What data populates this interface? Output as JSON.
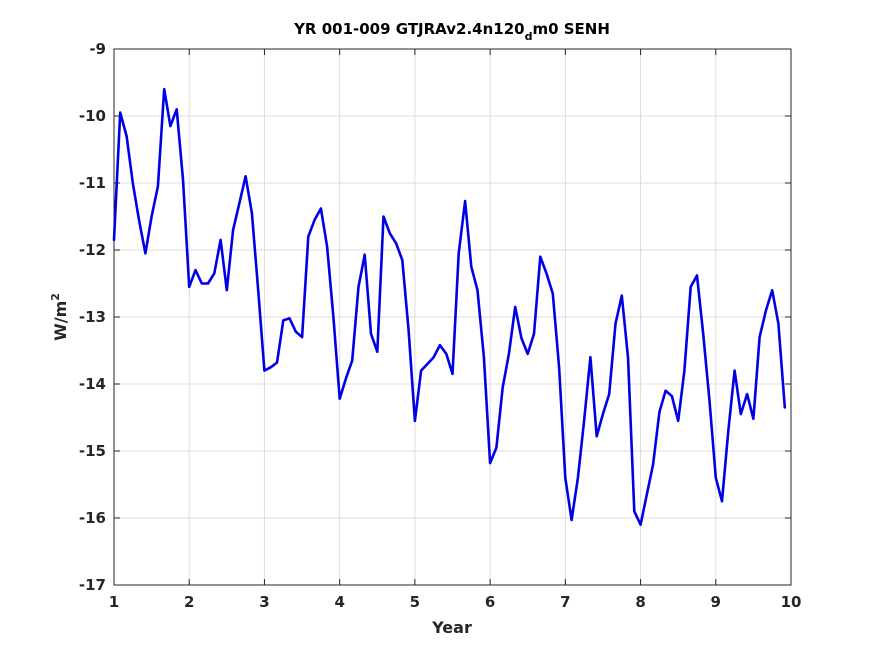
{
  "chart_data": {
    "type": "line",
    "title_main": "YR 001-009 GTJRAv2.4n120",
    "title_sub": "d",
    "title_tail": "m0 SENH",
    "xlabel": "Year",
    "ylabel_base": "W/m",
    "ylabel_sup": "2",
    "xlim": [
      1,
      10
    ],
    "ylim": [
      -17,
      -9
    ],
    "xticks": [
      1,
      2,
      3,
      4,
      5,
      6,
      7,
      8,
      9,
      10
    ],
    "yticks": [
      -17,
      -16,
      -15,
      -14,
      -13,
      -12,
      -11,
      -10,
      -9
    ],
    "xtick_labels": [
      "1",
      "2",
      "3",
      "4",
      "5",
      "6",
      "7",
      "8",
      "9",
      "10"
    ],
    "ytick_labels": [
      "-17",
      "-16",
      "-15",
      "-14",
      "-13",
      "-12",
      "-11",
      "-10",
      "-9"
    ],
    "grid": true,
    "line_color": "#0000e6",
    "series": [
      {
        "x": [
          1.0,
          1.083,
          1.167,
          1.25,
          1.333,
          1.417,
          1.5,
          1.583,
          1.667,
          1.75,
          1.833,
          1.917,
          2.0,
          2.083,
          2.167,
          2.25,
          2.333,
          2.417,
          2.5,
          2.583,
          2.667,
          2.75,
          2.833,
          2.917,
          3.0,
          3.083,
          3.167,
          3.25,
          3.333,
          3.417,
          3.5,
          3.583,
          3.667,
          3.75,
          3.833,
          3.917,
          4.0,
          4.083,
          4.167,
          4.25,
          4.333,
          4.417,
          4.5,
          4.583,
          4.667,
          4.75,
          4.833,
          4.917,
          5.0,
          5.083,
          5.167,
          5.25,
          5.333,
          5.417,
          5.5,
          5.583,
          5.667,
          5.75,
          5.833,
          5.917,
          6.0,
          6.083,
          6.167,
          6.25,
          6.333,
          6.417,
          6.5,
          6.583,
          6.667,
          6.75,
          6.833,
          6.917,
          7.0,
          7.083,
          7.167,
          7.25,
          7.333,
          7.417,
          7.5,
          7.583,
          7.667,
          7.75,
          7.833,
          7.917,
          8.0,
          8.083,
          8.167,
          8.25,
          8.333,
          8.417,
          8.5,
          8.583,
          8.667,
          8.75,
          8.833,
          8.917,
          9.0,
          9.083,
          9.167,
          9.25,
          9.333,
          9.417,
          9.5,
          9.583,
          9.667,
          9.75,
          9.833,
          9.917
        ],
        "values": [
          -11.85,
          -9.95,
          -10.3,
          -11.0,
          -11.55,
          -12.05,
          -11.5,
          -11.05,
          -9.6,
          -10.15,
          -9.9,
          -10.95,
          -12.55,
          -12.3,
          -12.5,
          -12.5,
          -12.35,
          -11.85,
          -12.6,
          -11.7,
          -11.3,
          -10.9,
          -11.45,
          -12.6,
          -13.8,
          -13.75,
          -13.68,
          -13.05,
          -13.02,
          -13.22,
          -13.3,
          -11.8,
          -11.55,
          -11.38,
          -11.95,
          -13.0,
          -14.22,
          -13.92,
          -13.65,
          -12.55,
          -12.07,
          -13.25,
          -13.52,
          -11.5,
          -11.75,
          -11.9,
          -12.15,
          -13.2,
          -14.55,
          -13.8,
          -13.7,
          -13.6,
          -13.42,
          -13.55,
          -13.85,
          -12.05,
          -11.27,
          -12.25,
          -12.6,
          -13.6,
          -15.18,
          -14.95,
          -14.05,
          -13.55,
          -12.85,
          -13.32,
          -13.55,
          -13.25,
          -12.1,
          -12.35,
          -12.65,
          -13.75,
          -15.4,
          -16.03,
          -15.4,
          -14.55,
          -13.6,
          -14.78,
          -14.45,
          -14.15,
          -13.1,
          -12.68,
          -13.6,
          -15.9,
          -16.1,
          -15.65,
          -15.2,
          -14.42,
          -14.1,
          -14.18,
          -14.55,
          -13.8,
          -12.55,
          -12.38,
          -13.25,
          -14.25,
          -15.4,
          -15.75,
          -14.7,
          -13.8,
          -14.45,
          -14.15,
          -14.52,
          -13.3,
          -12.9,
          -12.6,
          -13.1,
          -14.35
        ]
      }
    ]
  }
}
